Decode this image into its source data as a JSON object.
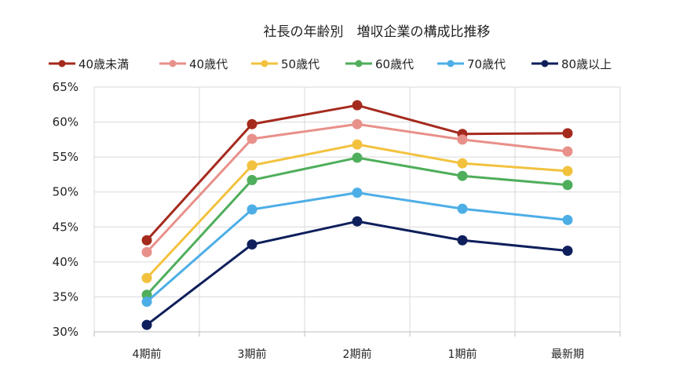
{
  "chart_data": {
    "type": "line",
    "title": "社長の年齢別　増収企業の構成比推移",
    "xlabel": "",
    "ylabel": "",
    "categories": [
      "4期前",
      "3期前",
      "2期前",
      "1期前",
      "最新期"
    ],
    "ylim": [
      30,
      65
    ],
    "yticks": [
      30,
      35,
      40,
      45,
      50,
      55,
      60,
      65
    ],
    "ytick_labels": [
      "30%",
      "35%",
      "40%",
      "45%",
      "50%",
      "55%",
      "60%",
      "65%"
    ],
    "grid": true,
    "legend_position": "top",
    "series": [
      {
        "name": "40歳未満",
        "color": "#A52A1E",
        "values": [
          43.1,
          59.7,
          62.4,
          58.3,
          58.4
        ]
      },
      {
        "name": "40歳代",
        "color": "#E8908A",
        "values": [
          41.4,
          57.6,
          59.7,
          57.5,
          55.8
        ]
      },
      {
        "name": "50歳代",
        "color": "#F2C23E",
        "values": [
          37.7,
          53.8,
          56.8,
          54.1,
          53.0
        ]
      },
      {
        "name": "60歳代",
        "color": "#4FAE5B",
        "values": [
          35.3,
          51.7,
          54.9,
          52.3,
          51.0
        ]
      },
      {
        "name": "70歳代",
        "color": "#4DAEE6",
        "values": [
          34.3,
          47.5,
          49.9,
          47.6,
          46.0
        ]
      },
      {
        "name": "80歳以上",
        "color": "#0F1F5C",
        "values": [
          31.0,
          42.5,
          45.8,
          43.1,
          41.6
        ]
      }
    ]
  }
}
